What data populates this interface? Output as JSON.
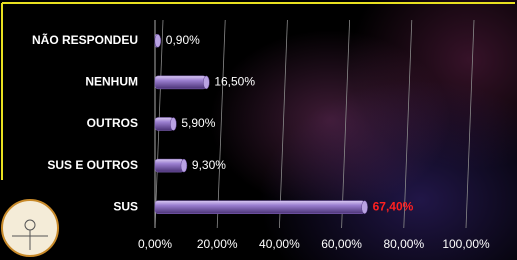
{
  "chart_data": {
    "type": "bar",
    "orientation": "horizontal",
    "categories": [
      "NÃO RESPONDEU",
      "NENHUM",
      "OUTROS",
      "SUS E OUTROS",
      "SUS"
    ],
    "values": [
      0.9,
      16.5,
      5.9,
      9.3,
      67.4
    ],
    "value_labels": [
      "0,90%",
      "16,50%",
      "5,90%",
      "9,30%",
      "67,40%"
    ],
    "value_label_colors": [
      "#ffffff",
      "#ffffff",
      "#ffffff",
      "#ffffff",
      "#ff2020"
    ],
    "color": "#8b6cc4",
    "xlim": [
      0,
      100
    ],
    "xticks": [
      {
        "value": 0,
        "label": "0,00%"
      },
      {
        "value": 20,
        "label": "20,00%"
      },
      {
        "value": 40,
        "label": "40,00%"
      },
      {
        "value": 60,
        "label": "60,00%"
      },
      {
        "value": 80,
        "label": "80,00%"
      },
      {
        "value": 100,
        "label": "100,00%"
      }
    ],
    "grid": true
  }
}
